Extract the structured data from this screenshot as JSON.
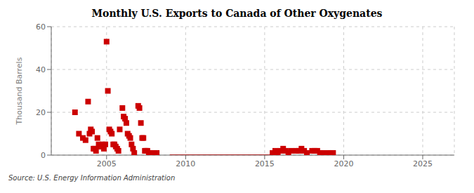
{
  "chart_data": {
    "type": "scatter",
    "title": "Monthly U.S. Exports to Canada of Other Oxygenates",
    "y_label": "Thousand Barrels",
    "annotation": "Source: U.S. Energy Information Administration",
    "xlim": [
      2001.5,
      2027
    ],
    "ylim": [
      0,
      60
    ],
    "xticks": [
      2005,
      2010,
      2015,
      2020,
      2025
    ],
    "yticks": [
      0,
      20,
      40,
      60
    ],
    "grid": true,
    "series": [
      {
        "type": "scatter",
        "color": "#cc0000",
        "marker": "square",
        "x": [
          2003.0,
          2003.25,
          2003.5,
          2003.67,
          2003.83,
          2003.92,
          2004.0,
          2004.08,
          2004.17,
          2004.25,
          2004.33,
          2004.42,
          2004.5,
          2004.58,
          2004.67,
          2004.75,
          2004.83,
          2004.92,
          2005.0,
          2005.08,
          2005.17,
          2005.25,
          2005.33,
          2005.42,
          2005.5,
          2005.58,
          2005.67,
          2005.75,
          2005.83,
          2006.0,
          2006.08,
          2006.17,
          2006.25,
          2006.33,
          2006.42,
          2006.5,
          2006.58,
          2006.67,
          2006.75,
          2007.0,
          2007.08,
          2007.17,
          2007.25,
          2007.33,
          2007.42,
          2007.5,
          2007.58,
          2007.67,
          2007.75,
          2008.0,
          2008.17,
          2015.5,
          2015.67,
          2015.83,
          2016.0,
          2016.17,
          2016.33,
          2016.5,
          2016.67,
          2017.0,
          2017.17,
          2017.33,
          2017.5,
          2017.67,
          2018.0,
          2018.17,
          2018.33,
          2018.5,
          2018.67,
          2019.0,
          2019.17,
          2019.33
        ],
        "values": [
          20,
          10,
          8,
          7,
          25,
          10,
          12,
          11,
          3,
          3,
          2,
          8,
          5,
          4,
          4,
          5,
          3,
          5,
          53,
          30,
          12,
          11,
          10,
          5,
          5,
          4,
          3,
          2,
          12,
          22,
          18,
          17,
          15,
          10,
          9,
          8,
          5,
          3,
          1,
          23,
          22,
          15,
          8,
          8,
          2,
          2,
          2,
          1,
          1,
          1,
          1,
          1,
          2,
          1,
          2,
          3,
          2,
          1,
          2,
          2,
          2,
          3,
          2,
          1,
          2,
          2,
          2,
          1,
          1,
          1,
          1,
          1
        ]
      },
      {
        "type": "line",
        "color": "#aa0000",
        "x": [
          2009.0,
          2015.4
        ],
        "values": [
          0,
          0
        ]
      }
    ]
  }
}
